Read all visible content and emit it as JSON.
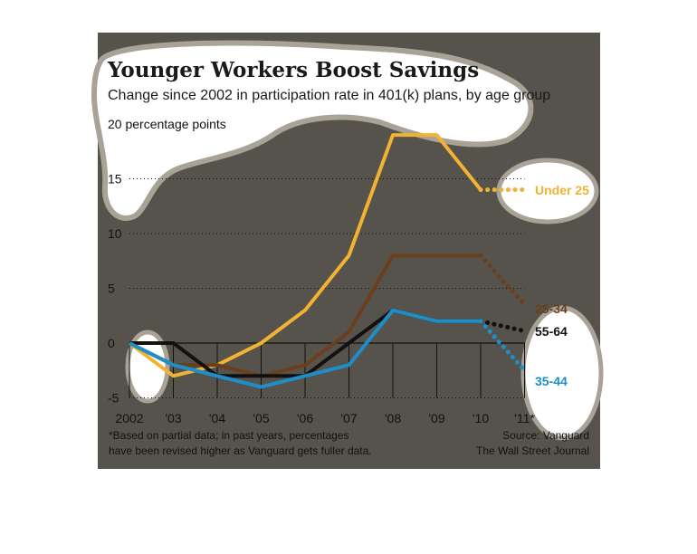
{
  "chart_data": {
    "type": "line",
    "title": "Younger Workers Boost Savings",
    "subtitle": "Change since 2002 in participation rate in 401(k) plans, by age group",
    "y_unit_label": "20 percentage points",
    "x": [
      "2002",
      "'03",
      "'04",
      "'05",
      "'06",
      "'07",
      "'08",
      "'09",
      "'10",
      "'11*"
    ],
    "yticks": [
      20,
      15,
      10,
      5,
      0,
      -5
    ],
    "ylim": [
      -5,
      20
    ],
    "grid": "dotted horizontal",
    "series": [
      {
        "name": "Under 25",
        "color": "#f2b233",
        "values": [
          0,
          -3,
          -2,
          0,
          3,
          8,
          19,
          19,
          14,
          14
        ]
      },
      {
        "name": "25-34",
        "color": "#6b3f1d",
        "values": [
          0,
          -2,
          -2,
          -3,
          -2,
          1,
          8,
          8,
          8,
          3.5
        ]
      },
      {
        "name": "55-64",
        "color": "#111111",
        "values": [
          0,
          0,
          -3,
          -3,
          -3,
          0,
          3,
          2,
          2,
          1.1
        ]
      },
      {
        "name": "35-44",
        "color": "#1e8ec8",
        "values": [
          0,
          -2,
          -3,
          -4,
          -3,
          -2,
          3,
          2,
          2,
          -2.5
        ]
      }
    ],
    "projected_from_index": 8,
    "footnote_lines": [
      "*Based on partial data; in past years, percentages",
      "have been revised higher as Vanguard gets fuller data."
    ],
    "source_lines": [
      "Source: Vanguard",
      "The Wall Street Journal"
    ]
  }
}
